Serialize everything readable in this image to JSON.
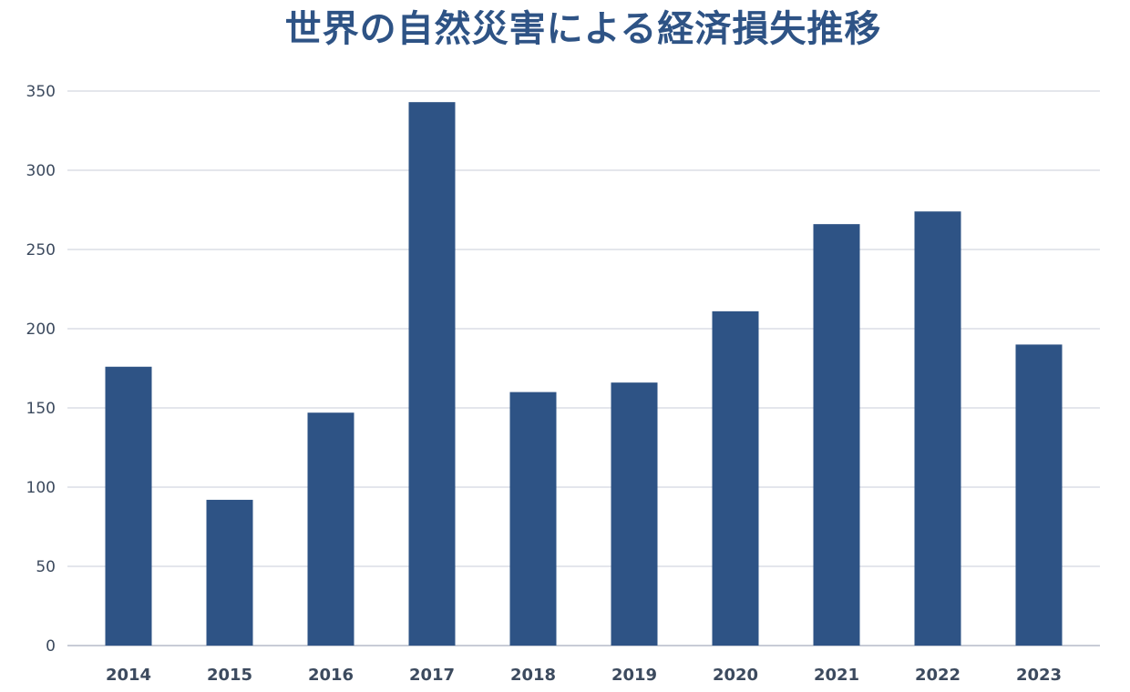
{
  "chart_data": {
    "type": "bar",
    "title": "世界の自然災害による経済損失推移",
    "xlabel": "",
    "ylabel": "",
    "categories": [
      "2014",
      "2015",
      "2016",
      "2017",
      "2018",
      "2019",
      "2020",
      "2021",
      "2022",
      "2023"
    ],
    "values": [
      176,
      92,
      147,
      343,
      160,
      166,
      211,
      266,
      274,
      190
    ],
    "ylim": [
      0,
      350
    ],
    "yticks": [
      0,
      50,
      100,
      150,
      200,
      250,
      300,
      350
    ],
    "grid": true,
    "bar_color": "#2e5385",
    "title_color": "#2e5385"
  }
}
